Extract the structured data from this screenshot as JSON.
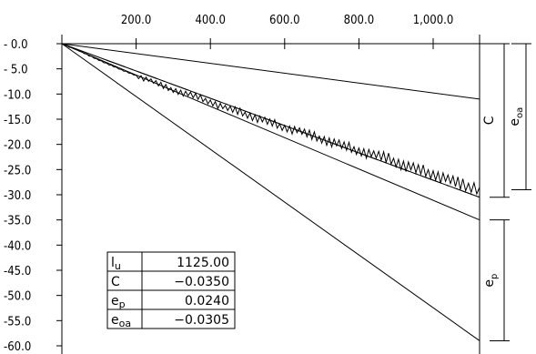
{
  "chart_data": {
    "type": "line",
    "title": "",
    "xlabel": "",
    "ylabel": "",
    "xlim": [
      0,
      1125
    ],
    "ylim": [
      -60,
      0
    ],
    "x_ticks": [
      200,
      400,
      600,
      800,
      1000
    ],
    "x_tick_labels": [
      "200.0",
      "400.0",
      "600.0",
      "800.0",
      "1,000.0"
    ],
    "y_ticks": [
      0,
      -5,
      -10,
      -15,
      -20,
      -25,
      -30,
      -35,
      -40,
      -45,
      -50,
      -55,
      -60
    ],
    "y_tick_labels": [
      "- 0.0",
      "- 5.0",
      "-10.0",
      "-15.0",
      "-20.0",
      "-25.0",
      "-30.0",
      "-35.0",
      "-40.0",
      "-45.0",
      "-50.0",
      "-55.0",
      "-60.0"
    ],
    "lines": [
      {
        "x": [
          0,
          1125
        ],
        "y": [
          0,
          -11
        ],
        "style": "solid"
      },
      {
        "x": [
          0,
          1125
        ],
        "y": [
          0,
          -30.5
        ],
        "style": "solid"
      },
      {
        "x": [
          0,
          1125
        ],
        "y": [
          0,
          -35
        ],
        "style": "solid"
      },
      {
        "x": [
          0,
          1125
        ],
        "y": [
          0,
          -59
        ],
        "style": "solid"
      },
      {
        "x": [
          0,
          1125
        ],
        "y": [
          0,
          -30.5
        ],
        "style": "dashdot"
      }
    ],
    "measured": {
      "x": [
        0,
        40,
        80,
        120,
        160,
        200,
        240,
        280,
        320,
        360,
        400,
        440,
        480,
        520,
        560,
        600,
        640,
        680,
        720,
        760,
        800,
        840,
        880,
        920,
        960,
        1000,
        1040,
        1080,
        1125
      ],
      "y": [
        0,
        -1.2,
        -2.6,
        -3.9,
        -5.2,
        -6.3,
        -7.4,
        -8.7,
        -9.6,
        -10.5,
        -11.5,
        -12.8,
        -13.6,
        -14.6,
        -15.7,
        -16.6,
        -17.4,
        -18.5,
        -19.3,
        -20.4,
        -21.2,
        -22.1,
        -22.9,
        -24.0,
        -25.1,
        -25.8,
        -27.0,
        -28.2,
        -28.5
      ]
    },
    "brackets": [
      {
        "label": "C",
        "y_from": 0,
        "y_to": -30.5
      },
      {
        "label": "e_oa",
        "y_from": 0,
        "y_to": -29.0
      },
      {
        "label": "e_p",
        "y_from": -35,
        "y_to": -59
      }
    ],
    "table": {
      "rows": [
        {
          "key": "l",
          "sub": "u",
          "value": "1125.00"
        },
        {
          "key": "C",
          "sub": "",
          "value": "−0.0350"
        },
        {
          "key": "e",
          "sub": "p",
          "value": "0.0240"
        },
        {
          "key": "e",
          "sub": "oa",
          "value": "−0.0305"
        }
      ]
    }
  }
}
